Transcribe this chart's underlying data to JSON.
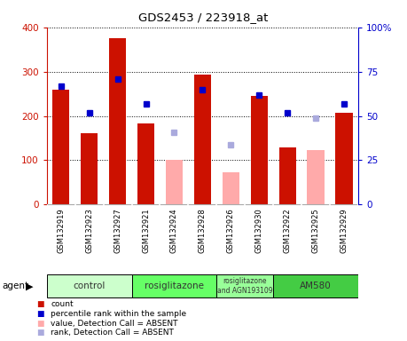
{
  "title": "GDS2453 / 223918_at",
  "samples": [
    "GSM132919",
    "GSM132923",
    "GSM132927",
    "GSM132921",
    "GSM132924",
    "GSM132928",
    "GSM132926",
    "GSM132930",
    "GSM132922",
    "GSM132925",
    "GSM132929"
  ],
  "count_values": [
    260,
    162,
    375,
    183,
    null,
    293,
    null,
    246,
    129,
    null,
    207
  ],
  "absent_value_values": [
    null,
    null,
    null,
    null,
    101,
    null,
    72,
    null,
    null,
    122,
    null
  ],
  "percentile_rank": [
    67,
    52,
    71,
    57,
    null,
    65,
    null,
    62,
    52,
    null,
    57
  ],
  "absent_rank_values": [
    null,
    null,
    null,
    null,
    41,
    null,
    34,
    null,
    null,
    49,
    null
  ],
  "ylim_left": [
    0,
    400
  ],
  "ylim_right": [
    0,
    100
  ],
  "yticks_left": [
    0,
    100,
    200,
    300,
    400
  ],
  "yticks_right": [
    0,
    25,
    50,
    75,
    100
  ],
  "yticklabels_right": [
    "0",
    "25",
    "50",
    "75",
    "100%"
  ],
  "groups": [
    {
      "label": "control",
      "indices": [
        0,
        1,
        2
      ],
      "color": "#ccffcc"
    },
    {
      "label": "rosiglitazone",
      "indices": [
        3,
        4,
        5
      ],
      "color": "#66ff66"
    },
    {
      "label": "rosiglitazone\nand AGN193109",
      "indices": [
        6,
        7
      ],
      "color": "#99ff99"
    },
    {
      "label": "AM580",
      "indices": [
        8,
        9,
        10
      ],
      "color": "#44cc44"
    }
  ],
  "bar_color_present": "#cc1100",
  "bar_color_absent": "#ffaaaa",
  "dot_color_present": "#0000cc",
  "dot_color_absent": "#aaaadd",
  "agent_label": "agent",
  "legend_items": [
    {
      "color": "#cc1100",
      "label": "count"
    },
    {
      "color": "#0000cc",
      "label": "percentile rank within the sample"
    },
    {
      "color": "#ffaaaa",
      "label": "value, Detection Call = ABSENT"
    },
    {
      "color": "#aaaadd",
      "label": "rank, Detection Call = ABSENT"
    }
  ],
  "plot_bg_color": "#ffffff"
}
